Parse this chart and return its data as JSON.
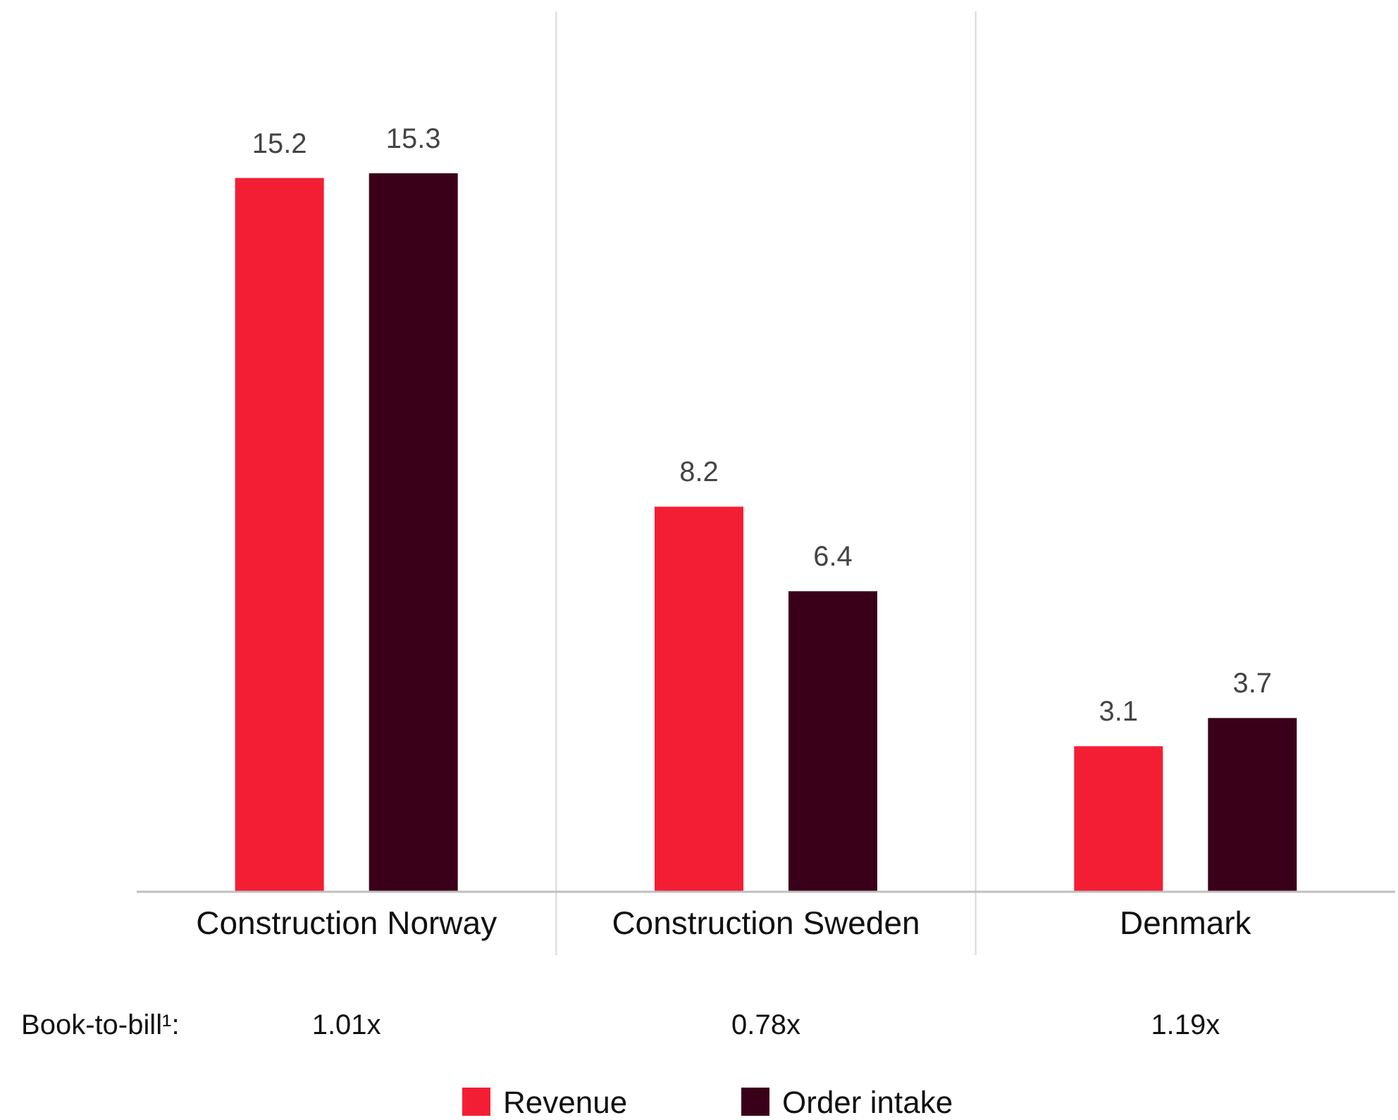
{
  "chart_data": {
    "type": "bar",
    "categories": [
      "Construction Norway",
      "Construction Sweden",
      "Denmark"
    ],
    "series": [
      {
        "name": "Revenue",
        "color": "#f41e34",
        "values": [
          15.2,
          8.2,
          3.1
        ]
      },
      {
        "name": "Order intake",
        "color": "#3a0019",
        "values": [
          15.3,
          6.4,
          3.7
        ]
      }
    ],
    "data_labels": true,
    "legend": "bottom",
    "annotations": [
      "Book-to-bill¹:",
      "1.01x",
      "0.78x",
      "1.19x"
    ]
  }
}
